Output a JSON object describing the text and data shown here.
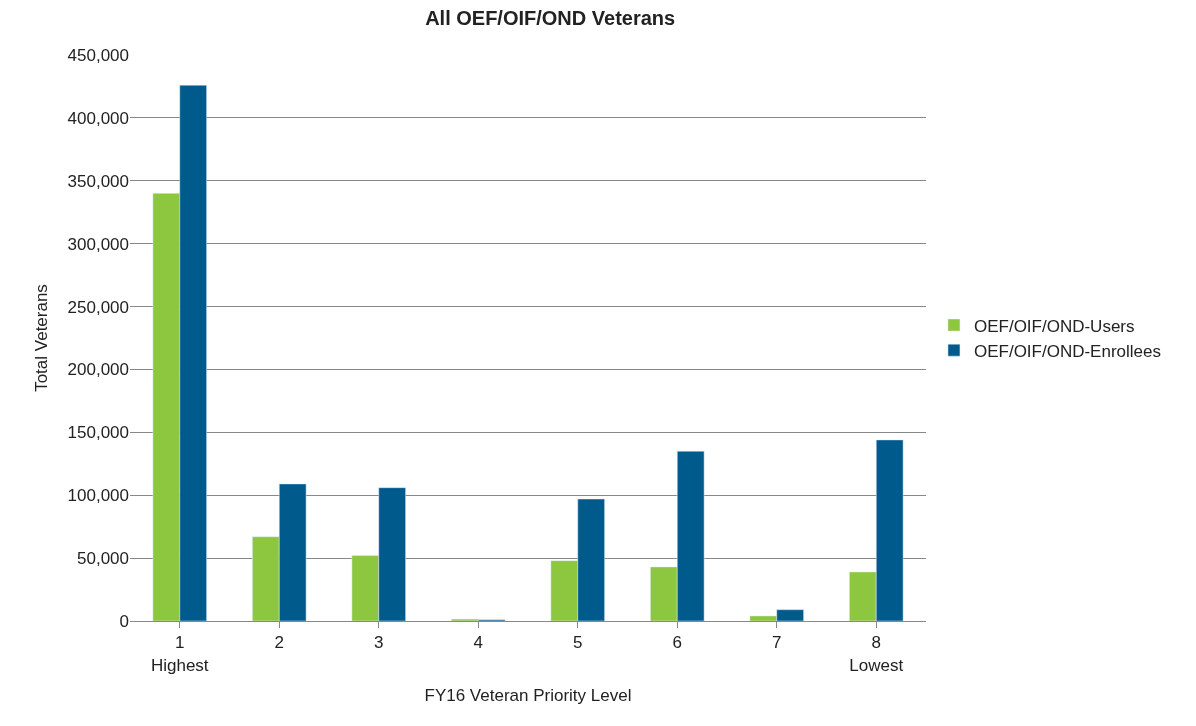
{
  "chart_data": {
    "type": "bar",
    "title": "All OEF/OIF/OND Veterans",
    "xlabel": "FY16 Veteran Priority Level",
    "ylabel": "Total Veterans",
    "categories": [
      "1\nHighest",
      "2",
      "3",
      "4",
      "5",
      "6",
      "7",
      "8\nLowest"
    ],
    "series": [
      {
        "name": "OEF/OIF/OND-Users",
        "color": "#8dc63f",
        "values": [
          340000,
          67000,
          52000,
          1500,
          48000,
          43000,
          4000,
          39000
        ]
      },
      {
        "name": "OEF/OIF/OND-Enrollees",
        "color": "#005a8c",
        "values": [
          426000,
          109000,
          106000,
          1000,
          97000,
          135000,
          9000,
          144000
        ]
      }
    ],
    "ylim": [
      0,
      450000
    ],
    "yticks": [
      {
        "value": 0,
        "label": "0"
      },
      {
        "value": 50000,
        "label": "50,000"
      },
      {
        "value": 100000,
        "label": "100,000"
      },
      {
        "value": 150000,
        "label": "150,000"
      },
      {
        "value": 200000,
        "label": "200,000"
      },
      {
        "value": 250000,
        "label": "250,000"
      },
      {
        "value": 300000,
        "label": "300,000"
      },
      {
        "value": 350000,
        "label": "350,000"
      },
      {
        "value": 400000,
        "label": "400,000"
      },
      {
        "value": 450000,
        "label": "450,000"
      }
    ],
    "grid": "y",
    "legend": "right"
  }
}
